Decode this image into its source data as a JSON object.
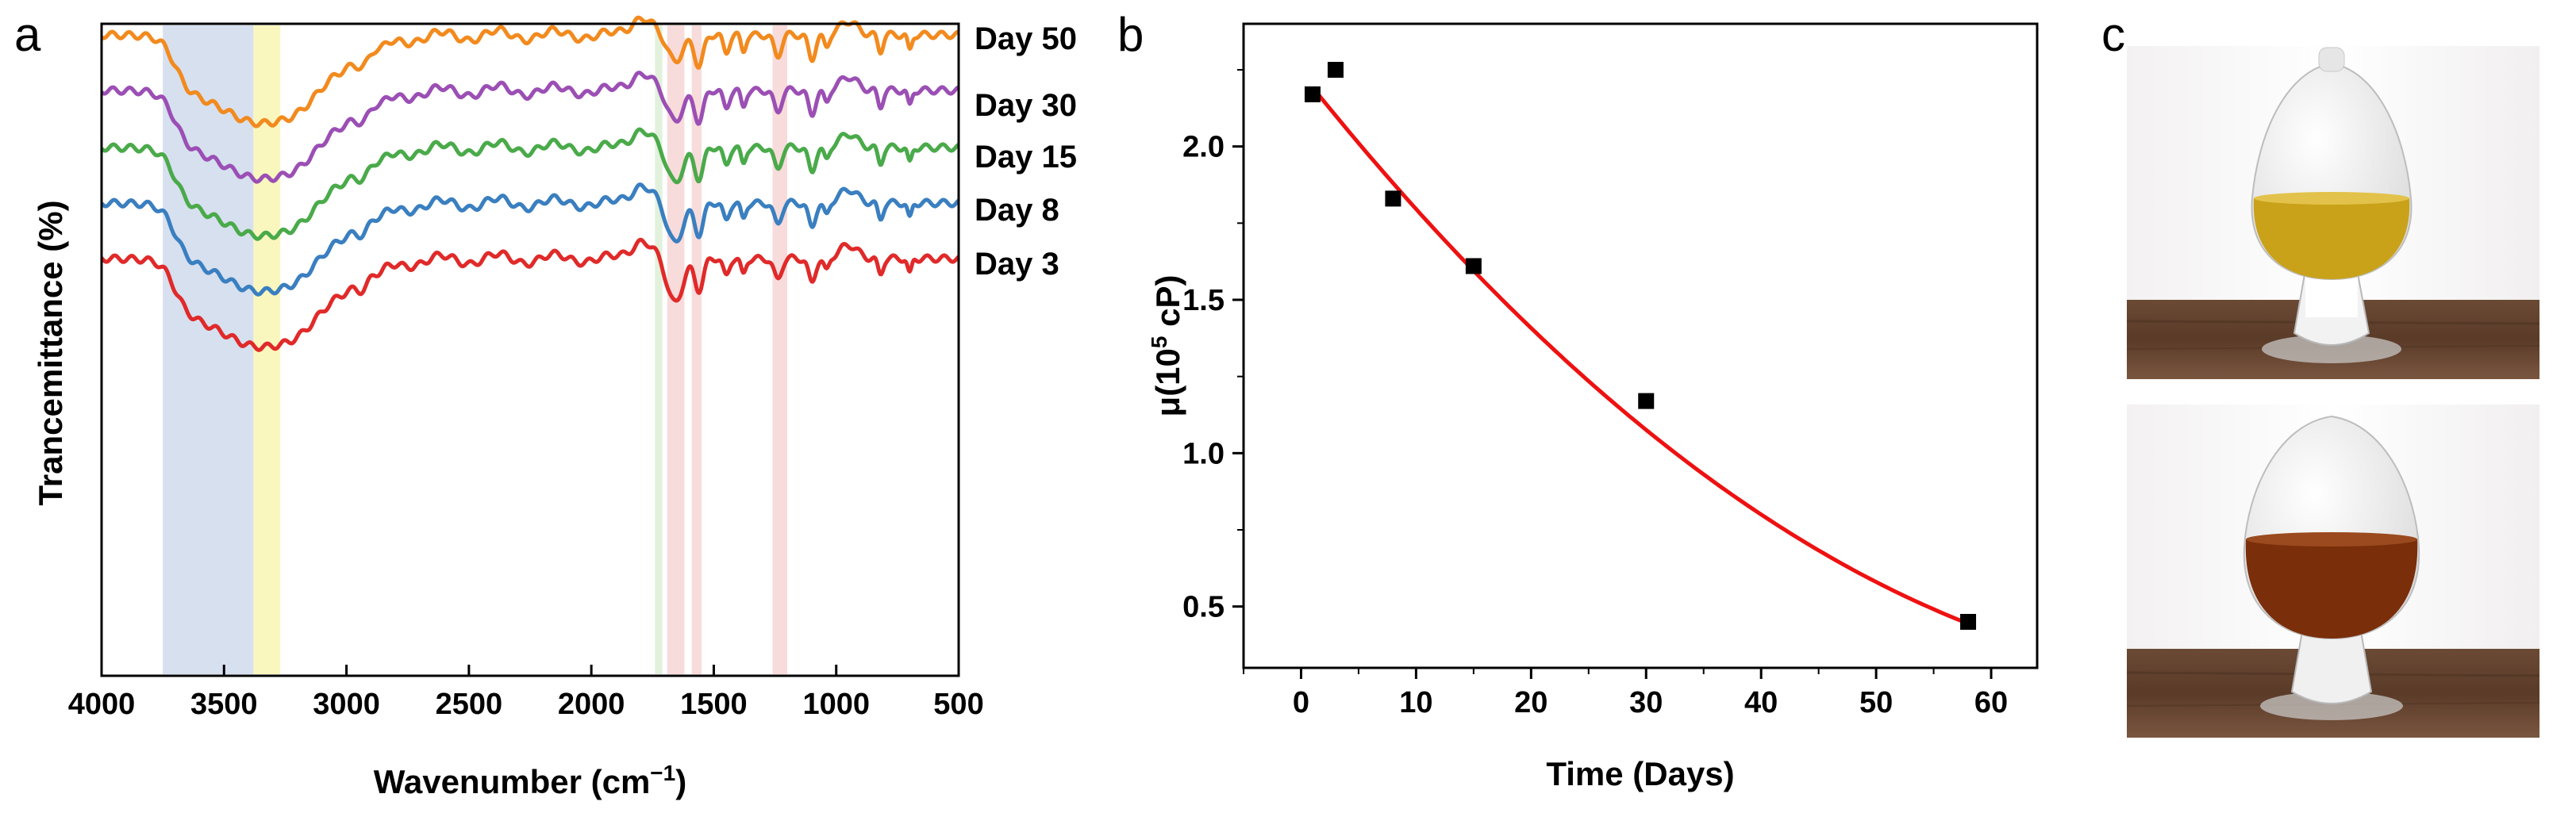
{
  "panels": {
    "a": {
      "label": "a"
    },
    "b": {
      "label": "b"
    },
    "c": {
      "label": "c"
    }
  },
  "chart_data": [
    {
      "type": "line",
      "panel": "a",
      "title": "",
      "xlabel_main": "Wavenumber (cm",
      "xlabel_sup": "−1",
      "xlabel_close": ")",
      "ylabel": "Trancemittance (%)",
      "xlim": [
        4000,
        500
      ],
      "x_reversed": true,
      "xticks": [
        4000,
        3500,
        3000,
        2500,
        2000,
        1500,
        1000,
        500
      ],
      "highlight_bands": [
        {
          "from": 3750,
          "to": 3380,
          "color": "#c8d6ea"
        },
        {
          "from": 3380,
          "to": 3270,
          "color": "#f8f4a8"
        },
        {
          "from": 1740,
          "to": 1710,
          "color": "#d8ecd0"
        },
        {
          "from": 1690,
          "to": 1620,
          "color": "#f6cfcf"
        },
        {
          "from": 1590,
          "to": 1550,
          "color": "#f6cfcf"
        },
        {
          "from": 1260,
          "to": 1200,
          "color": "#f6cfcf"
        }
      ],
      "series": [
        {
          "name": "Day 50",
          "color": "#f28a1e"
        },
        {
          "name": "Day 30",
          "color": "#9b4fb4"
        },
        {
          "name": "Day 15",
          "color": "#4aaa4a"
        },
        {
          "name": "Day 8",
          "color": "#3a7fc0"
        },
        {
          "name": "Day 3",
          "color": "#e02a2a"
        }
      ]
    },
    {
      "type": "scatter",
      "panel": "b",
      "title": "",
      "xlabel": "Time (Days)",
      "ylabel_main": "μ(10",
      "ylabel_sup": "5",
      "ylabel_close": " cP)",
      "xlim": [
        -5,
        64
      ],
      "ylim": [
        0.3,
        2.4
      ],
      "xticks": [
        0,
        10,
        20,
        30,
        40,
        50,
        60
      ],
      "yticks": [
        "0.5",
        "1.0",
        "1.5",
        "2.0"
      ],
      "points": [
        {
          "x": 1,
          "y": 2.17
        },
        {
          "x": 3,
          "y": 2.25
        },
        {
          "x": 8,
          "y": 1.83
        },
        {
          "x": 15,
          "y": 1.61
        },
        {
          "x": 30,
          "y": 1.17
        },
        {
          "x": 58,
          "y": 0.45
        }
      ],
      "fit": {
        "type": "quadratic",
        "x_range": [
          1,
          58
        ],
        "coef": [
          2.24,
          -0.0472,
          0.00028
        ],
        "color": "#ee1111"
      }
    }
  ],
  "photos": [
    {
      "name": "flask-day3-light-liquid",
      "liquid_color": "#c9a21a"
    },
    {
      "name": "flask-day50-dark-liquid",
      "liquid_color": "#7a2e0a"
    }
  ]
}
